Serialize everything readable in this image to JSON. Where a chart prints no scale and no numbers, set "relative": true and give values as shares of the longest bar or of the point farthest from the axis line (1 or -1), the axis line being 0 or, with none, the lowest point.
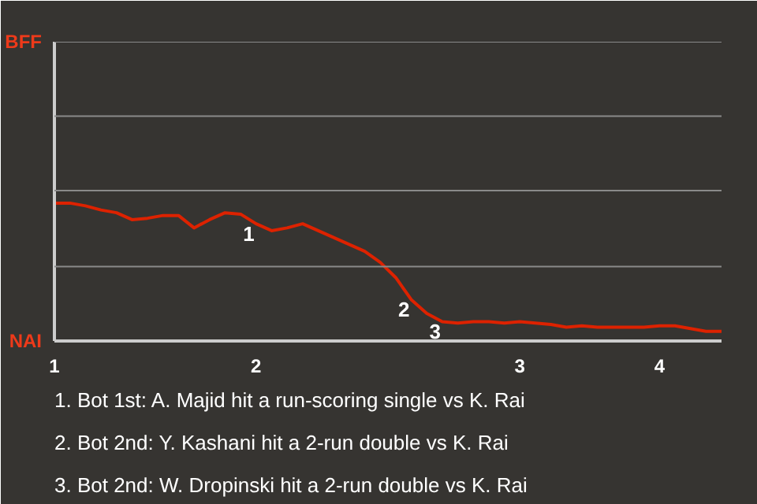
{
  "chart_data": {
    "type": "line",
    "relative": true,
    "categories": [
      "1",
      null,
      null,
      null,
      null,
      null,
      null,
      null,
      null,
      null,
      null,
      null,
      null,
      "2",
      null,
      null,
      null,
      null,
      null,
      null,
      null,
      null,
      null,
      null,
      null,
      null,
      null,
      null,
      null,
      null,
      "3",
      null,
      null,
      null,
      null,
      null,
      null,
      null,
      null,
      "4",
      null,
      null,
      null,
      null
    ],
    "series": [
      {
        "color": "#dd2200",
        "values": [
          1,
          1,
          0.98,
          0.95,
          0.93,
          0.88,
          0.89,
          0.91,
          0.91,
          0.82,
          0.88,
          0.93,
          0.92,
          0.85,
          0.8,
          0.82,
          0.85,
          0.8,
          0.75,
          0.7,
          0.65,
          0.57,
          0.46,
          0.3,
          0.2,
          0.14,
          0.13,
          0.14,
          0.14,
          0.13,
          0.14,
          0.13,
          0.12,
          0.1,
          0.11,
          0.1,
          0.1,
          0.1,
          0.1,
          0.11,
          0.11,
          0.09,
          0.07,
          0.07
        ]
      }
    ],
    "ref_lines": [
      {
        "axis": "y",
        "value": 0.54,
        "color": "#8a8a8a"
      },
      {
        "axis": "y",
        "value": 1.09,
        "color": "#8a8a8a"
      },
      {
        "axis": "y",
        "value": 1.63,
        "color": "#8a8a8a"
      },
      {
        "axis": "y",
        "value": 2.17,
        "color": "#8a8a8a"
      }
    ],
    "marker": "none",
    "line_style": "solid",
    "annotations": [
      "BFF",
      "NAI",
      {
        "text": "1",
        "y": 0.85
      },
      {
        "text": "2",
        "y": 0.3
      },
      {
        "text": "3",
        "y": 0.14
      },
      "1. Bot 1st: A. Majid hit a run-scoring single vs K. Rai",
      "2. Bot 2nd: Y. Kashani hit a 2-run double vs K. Rai",
      "3. Bot 2nd: W. Dropinski hit a 2-run double vs K. Rai"
    ]
  }
}
